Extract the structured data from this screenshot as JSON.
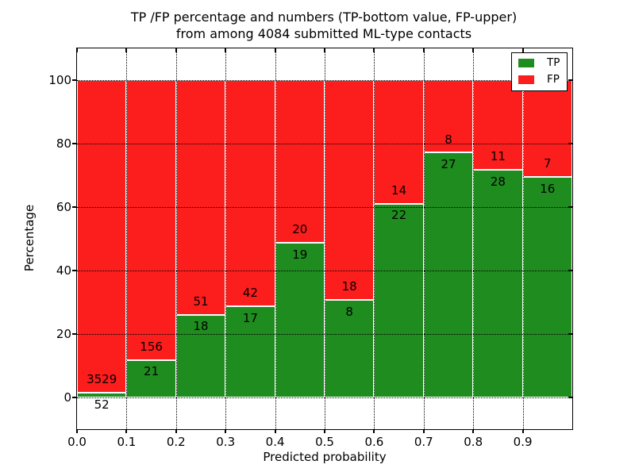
{
  "chart_data": {
    "type": "bar",
    "variant": "stacked-percentage-histogram",
    "title_line1": "TP /FP percentage and numbers (TP-bottom value, FP-upper)",
    "title_line2": "from among 4084 submitted ML-type contacts",
    "xlabel": "Predicted probability",
    "ylabel": "Percentage",
    "bin_edges": [
      0.0,
      0.1,
      0.2,
      0.3,
      0.4,
      0.5,
      0.6,
      0.7,
      0.8,
      0.9,
      1.0
    ],
    "series": [
      {
        "name": "TP",
        "color": "#1f8c1f",
        "counts": [
          52,
          21,
          18,
          17,
          19,
          8,
          22,
          27,
          28,
          16
        ]
      },
      {
        "name": "FP",
        "color": "#fc1d1d",
        "counts": [
          3529,
          156,
          51,
          42,
          20,
          18,
          14,
          8,
          11,
          7
        ]
      }
    ],
    "tp_percent_of_bin": [
      1.5,
      11.9,
      26.1,
      28.8,
      48.7,
      30.8,
      61.1,
      77.1,
      71.8,
      69.6
    ],
    "xticks": [
      "0.0",
      "0.1",
      "0.2",
      "0.3",
      "0.4",
      "0.5",
      "0.6",
      "0.7",
      "0.8",
      "0.9"
    ],
    "yticks": [
      0,
      20,
      40,
      60,
      80,
      100
    ],
    "xlim": [
      0.0,
      1.0
    ],
    "ylim": [
      -10,
      110
    ],
    "grid": "dotted",
    "bar_edge_color": "#ffffff",
    "legend": {
      "position": "upper right",
      "entries": [
        "TP",
        "FP"
      ]
    }
  }
}
